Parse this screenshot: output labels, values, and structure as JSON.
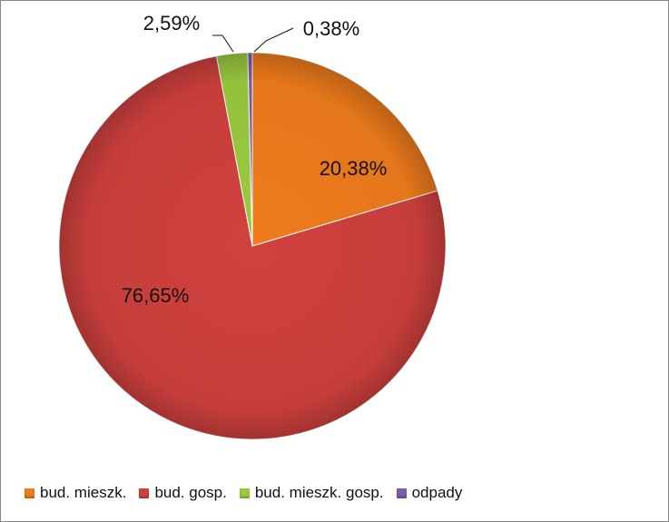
{
  "chart_data": {
    "type": "pie",
    "categories": [
      "bud. mieszk.",
      "bud. gosp.",
      "bud. mieszk. gosp.",
      "odpady"
    ],
    "values": [
      20.38,
      76.65,
      2.59,
      0.38
    ],
    "labels": [
      "20,38%",
      "76,65%",
      "2,59%",
      "0,38%"
    ],
    "colors": [
      "#F07C1C",
      "#D0413E",
      "#9BCB40",
      "#7B5EA8"
    ],
    "legend_position": "bottom"
  }
}
